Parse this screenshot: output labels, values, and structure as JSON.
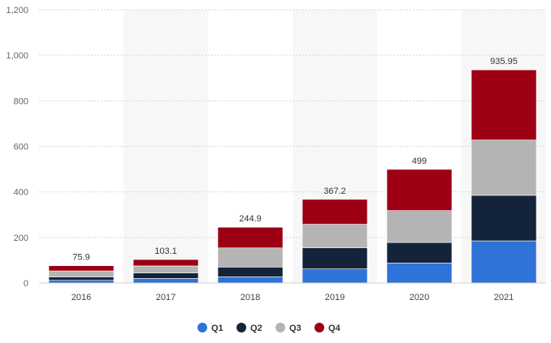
{
  "chart_data": {
    "type": "bar",
    "stacked": true,
    "categories": [
      "2016",
      "2017",
      "2018",
      "2019",
      "2020",
      "2021"
    ],
    "series": [
      {
        "name": "Q1",
        "color": "#2f72d8",
        "values": [
          12,
          20,
          27,
          62,
          88,
          185
        ]
      },
      {
        "name": "Q2",
        "color": "#13243a",
        "values": [
          14,
          24,
          43,
          93,
          90,
          200
        ]
      },
      {
        "name": "Q3",
        "color": "#b4b4b4",
        "values": [
          27,
          31,
          84,
          103,
          140,
          243
        ]
      },
      {
        "name": "Q4",
        "color": "#9d0012",
        "values": [
          22.9,
          28.1,
          90.9,
          109.2,
          181,
          307.95
        ]
      }
    ],
    "totals": [
      "75.9",
      "103.1",
      "244.9",
      "367.2",
      "499",
      "935.95"
    ],
    "yticks": [
      "0",
      "200",
      "400",
      "600",
      "800",
      "1,000",
      "1,200"
    ],
    "ylim": [
      0,
      1200
    ],
    "grid": true,
    "legend_position": "bottom",
    "title": "",
    "xlabel": "",
    "ylabel": ""
  }
}
